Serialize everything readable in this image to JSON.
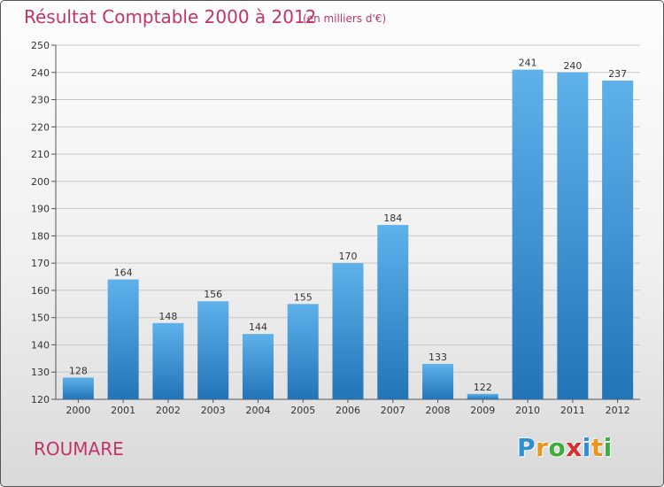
{
  "header": {
    "title": "Résultat Comptable 2000 à 2012",
    "subtitle": "(en milliers d'€)"
  },
  "commune": "ROUMARE",
  "logo": {
    "letters": [
      "P",
      "r",
      "o",
      "x",
      "i",
      "t",
      "i"
    ],
    "colors": [
      "#2e8fd6",
      "#e8961d",
      "#3cae3c",
      "#d62f2f",
      "#2e8fd6",
      "#e8961d",
      "#3cae3c"
    ]
  },
  "colors": {
    "bar_top": "#5fb1ea",
    "bar_bottom": "#2374b8",
    "text": "#c0346a",
    "grid": "#c8c8c8"
  },
  "chart_data": {
    "type": "bar",
    "categories": [
      "2000",
      "2001",
      "2002",
      "2003",
      "2004",
      "2005",
      "2006",
      "2007",
      "2008",
      "2009",
      "2010",
      "2011",
      "2012"
    ],
    "values": [
      128,
      164,
      148,
      156,
      144,
      155,
      170,
      184,
      133,
      122,
      241,
      240,
      237
    ],
    "title": "Résultat Comptable 2000 à 2012",
    "ylim": [
      120,
      250
    ],
    "yticks": [
      120,
      130,
      140,
      150,
      160,
      170,
      180,
      190,
      200,
      210,
      220,
      230,
      240,
      250
    ],
    "grid": true
  }
}
